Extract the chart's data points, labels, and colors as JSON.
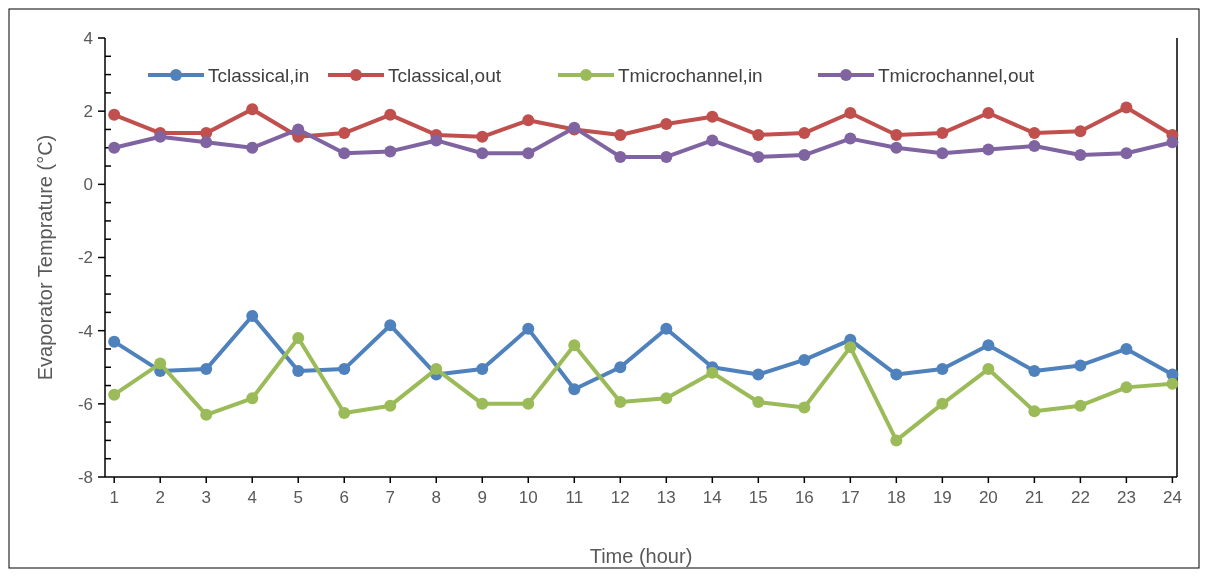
{
  "chart_data": {
    "type": "line",
    "xlabel": "Time (hour)",
    "ylabel": "Evaporator Temprature (°C)",
    "x": [
      1,
      2,
      3,
      4,
      5,
      6,
      7,
      8,
      9,
      10,
      11,
      12,
      13,
      14,
      15,
      16,
      17,
      18,
      19,
      20,
      21,
      22,
      23,
      24
    ],
    "xlim": [
      0.8,
      24.1
    ],
    "xticks": [
      1,
      2,
      3,
      4,
      5,
      6,
      7,
      8,
      9,
      10,
      11,
      12,
      13,
      14,
      15,
      16,
      17,
      18,
      19,
      20,
      21,
      22,
      23,
      24
    ],
    "ylim": [
      -8,
      4
    ],
    "yticks": [
      -8,
      -6,
      -4,
      -2,
      0,
      2,
      4
    ],
    "grid": false,
    "legend": "top",
    "marker": "circle",
    "line_style": "solid",
    "series": [
      {
        "name": "Tclassical,in",
        "color": "#4f81bd",
        "values": [
          -4.3,
          -5.1,
          -5.05,
          -3.6,
          -5.1,
          -5.05,
          -3.85,
          -5.2,
          -5.05,
          -3.95,
          -5.6,
          -5.0,
          -3.95,
          -5.0,
          -5.2,
          -4.8,
          -4.25,
          -5.2,
          -5.05,
          -4.4,
          -5.1,
          -4.95,
          -4.5,
          -5.2
        ]
      },
      {
        "name": "Tclassical,out",
        "color": "#c0504d",
        "values": [
          1.9,
          1.4,
          1.4,
          2.05,
          1.3,
          1.4,
          1.9,
          1.35,
          1.3,
          1.75,
          1.5,
          1.35,
          1.65,
          1.85,
          1.35,
          1.4,
          1.95,
          1.35,
          1.4,
          1.95,
          1.4,
          1.45,
          2.1,
          1.35
        ]
      },
      {
        "name": "Tmicrochannel,in",
        "color": "#9bbb59",
        "values": [
          -5.75,
          -4.9,
          -6.3,
          -5.85,
          -4.2,
          -6.25,
          -6.05,
          -5.05,
          -6.0,
          -6.0,
          -4.4,
          -5.95,
          -5.85,
          -5.15,
          -5.95,
          -6.1,
          -4.45,
          -7.0,
          -6.0,
          -5.05,
          -6.2,
          -6.05,
          -5.55,
          -5.45
        ]
      },
      {
        "name": "Tmicrochannel,out",
        "color": "#8064a2",
        "values": [
          1.0,
          1.3,
          1.15,
          1.0,
          1.5,
          0.85,
          0.9,
          1.2,
          0.85,
          0.85,
          1.55,
          0.75,
          0.75,
          1.2,
          0.75,
          0.8,
          1.25,
          1.0,
          0.85,
          0.95,
          1.05,
          0.8,
          0.85,
          1.15
        ]
      }
    ]
  }
}
